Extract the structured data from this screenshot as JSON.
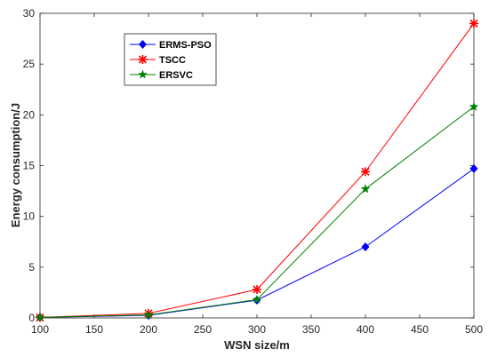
{
  "chart_data": {
    "type": "line",
    "x": [
      100,
      200,
      300,
      400,
      500
    ],
    "xlabel": "WSN size/m",
    "ylabel": "Energy consumption/J",
    "xlim": [
      100,
      500
    ],
    "ylim": [
      0,
      30
    ],
    "xticks": [
      100,
      150,
      200,
      250,
      300,
      350,
      400,
      450,
      500
    ],
    "yticks": [
      0,
      5,
      10,
      15,
      20,
      25,
      30
    ],
    "grid": false,
    "legend_position": "upper-left",
    "series": [
      {
        "name": "ERMS-PSO",
        "color": "#0000ff",
        "marker": "diamond",
        "values": [
          0.05,
          0.25,
          1.75,
          7.0,
          14.7
        ]
      },
      {
        "name": "TSCC",
        "color": "#ff0000",
        "marker": "asterisk",
        "values": [
          0.05,
          0.45,
          2.8,
          14.4,
          29.0
        ]
      },
      {
        "name": "ERSVC",
        "color": "#008000",
        "marker": "star",
        "values": [
          0.05,
          0.3,
          1.8,
          12.7,
          20.8
        ]
      }
    ]
  }
}
